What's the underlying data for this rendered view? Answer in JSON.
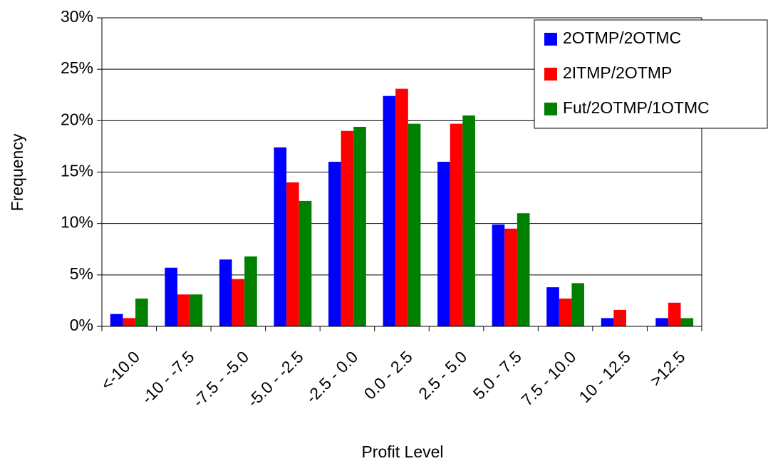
{
  "chart_data": {
    "type": "bar",
    "x_label": "Profit Level",
    "y_label": "Frequency",
    "categories": [
      "<-10.0",
      "-10 - -7.5",
      "-7.5 - -5.0",
      "-5.0 - -2.5",
      "-2.5 - 0.0",
      "0.0 - 2.5",
      "2.5 - 5.0",
      "5.0 - 7.5",
      "7.5 - 10.0",
      "10 - 12.5",
      ">12.5"
    ],
    "series": [
      {
        "name": "2OTMP/2OTMC",
        "color": "#0000ff",
        "values": [
          1.2,
          5.7,
          6.5,
          17.4,
          16.0,
          22.4,
          16.0,
          9.9,
          3.8,
          0.8,
          0.8
        ]
      },
      {
        "name": "2ITMP/2OTMP",
        "color": "#ff0000",
        "values": [
          0.8,
          3.1,
          4.6,
          14.0,
          19.0,
          23.1,
          19.7,
          9.5,
          2.7,
          1.6,
          2.3
        ]
      },
      {
        "name": "Fut/2OTMP/1OTMC",
        "color": "#008000",
        "values": [
          2.7,
          3.1,
          6.8,
          12.2,
          19.4,
          19.7,
          20.5,
          11.0,
          4.2,
          0,
          0.8
        ]
      }
    ],
    "ylim": [
      0,
      30
    ],
    "yticks": [
      {
        "value": 0,
        "label": "0%"
      },
      {
        "value": 5,
        "label": "5%"
      },
      {
        "value": 10,
        "label": "10%"
      },
      {
        "value": 15,
        "label": "15%"
      },
      {
        "value": 20,
        "label": "20%"
      },
      {
        "value": 25,
        "label": "25%"
      },
      {
        "value": 30,
        "label": "30%"
      }
    ],
    "grid": true,
    "legend": "top-right"
  }
}
